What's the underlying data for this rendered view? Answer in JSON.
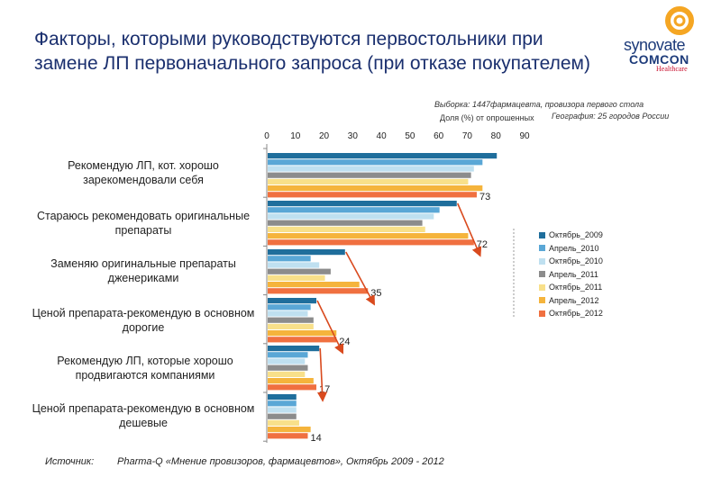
{
  "title": "Факторы, которыми руководствуются первостольники при замене ЛП первоначального запроса (при отказе покупателем)",
  "logo": {
    "name_line1": "synovate",
    "name_line2": "COMCON",
    "name_line3": "Healthcare"
  },
  "sample_line1": "Выборка: 1447фармацевта, провизора первого стола",
  "sample_line2": "География: 25 городов России",
  "share_label": "Доля (%) от опрошенных",
  "source_label": "Источник:",
  "source_text": "Pharma-Q «Мнение провизоров, фармацевтов», Октябрь 2009 - 2012",
  "chart_data": {
    "type": "bar",
    "orientation": "horizontal",
    "xlim": [
      0,
      90
    ],
    "xticks": [
      "0",
      "10",
      "20",
      "30",
      "40",
      "50",
      "60",
      "70",
      "80",
      "90"
    ],
    "grid": false,
    "legend_position": "right",
    "categories": [
      "Рекомендую ЛП, кот. хорошо зарекомендовали себя",
      "Стараюсь рекомендовать оригинальные препараты",
      "Заменяю оригинальные препараты дженериками",
      "Ценой препарата-рекомендую в основном дорогие",
      "Рекомендую ЛП, которые хорошо продвигаются компаниями",
      "Ценой препарата-рекомендую в основном дешевые"
    ],
    "series": [
      {
        "name": "Октябрь_2009",
        "color": "#1f6e9c",
        "values": [
          80,
          66,
          27,
          17,
          18,
          10
        ]
      },
      {
        "name": "Апрель_2010",
        "color": "#5aa7d6",
        "values": [
          75,
          60,
          15,
          15,
          14,
          10
        ]
      },
      {
        "name": "Октябрь_2010",
        "color": "#bfe0f0",
        "values": [
          72,
          58,
          18,
          14,
          13,
          10
        ]
      },
      {
        "name": "Апрель_2011",
        "color": "#8c8c8c",
        "values": [
          71,
          54,
          22,
          16,
          14,
          10
        ]
      },
      {
        "name": "Октябрь_2011",
        "color": "#f8e08a",
        "values": [
          70,
          55,
          20,
          16,
          13,
          11
        ]
      },
      {
        "name": "Апрель_2012",
        "color": "#f5b43c",
        "values": [
          75,
          70,
          32,
          24,
          16,
          15
        ]
      },
      {
        "name": "Октябрь_2012",
        "color": "#f07040",
        "values": [
          73,
          72,
          35,
          24,
          17,
          14
        ]
      }
    ],
    "data_labels": [
      "73",
      "72",
      "35",
      "24",
      "17",
      "14"
    ],
    "trend_arrows_color": "#d94a1e"
  }
}
